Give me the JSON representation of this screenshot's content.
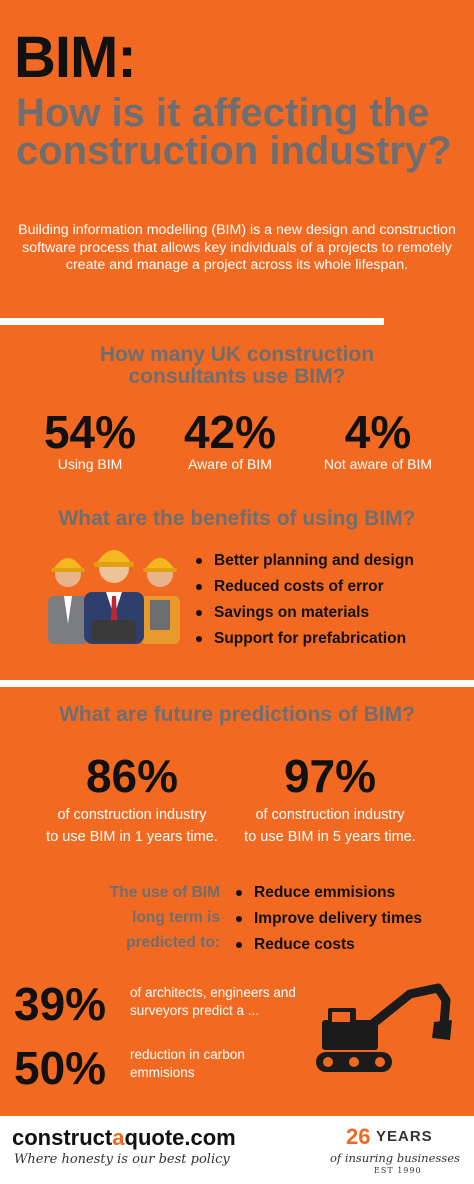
{
  "header": {
    "title": "BIM:",
    "question": "How is it affecting the construction industry?",
    "intro": "Building information modelling (BIM) is a new design and construction software process that allows key individuals of a projects to remotely create and manage a project across its whole lifespan."
  },
  "usage": {
    "heading_line1": "How many UK construction",
    "heading_line2": "consultants use BIM?",
    "stats": [
      {
        "value": "54%",
        "label": "Using BIM"
      },
      {
        "value": "42%",
        "label": "Aware of BIM"
      },
      {
        "value": "4%",
        "label": "Not aware of  BIM"
      }
    ]
  },
  "benefits": {
    "heading": "What are the benefits of using BIM?",
    "items": [
      "Better planning and design",
      "Reduced costs of error",
      "Savings on materials",
      "Support for prefabrication"
    ]
  },
  "predictions": {
    "heading": "What are future predictions of BIM?",
    "stats": [
      {
        "value": "86%",
        "line1": "of construction industry",
        "line2": "to use BIM in 1 years time."
      },
      {
        "value": "97%",
        "line1": "of construction industry",
        "line2": "to use BIM in 5 years time."
      }
    ],
    "long_term_line1": "The use of BIM",
    "long_term_line2": "long term is",
    "long_term_line3": "predicted to:",
    "long_term_items": [
      "Reduce emmisions",
      "Improve delivery times",
      "Reduce costs"
    ],
    "stat_39": {
      "value": "39%",
      "line1": "of architects, engineers and",
      "line2": "surveyors predict a ..."
    },
    "stat_50": {
      "value": "50%",
      "line1": "reduction in carbon",
      "line2": "emmisions"
    }
  },
  "footer": {
    "brand_part1": "construct",
    "brand_part2": "a",
    "brand_part3": "quote",
    "brand_part4": ".com",
    "tagline": "Where honesty is our best policy",
    "years_number": "26",
    "years_word": "YEARS",
    "years_sub": "of insuring businesses",
    "years_est": "EST 1990"
  },
  "colors": {
    "background": "#f26a21",
    "heading_grey": "#6d6e71",
    "dark": "#111111",
    "white": "#ffffff"
  }
}
